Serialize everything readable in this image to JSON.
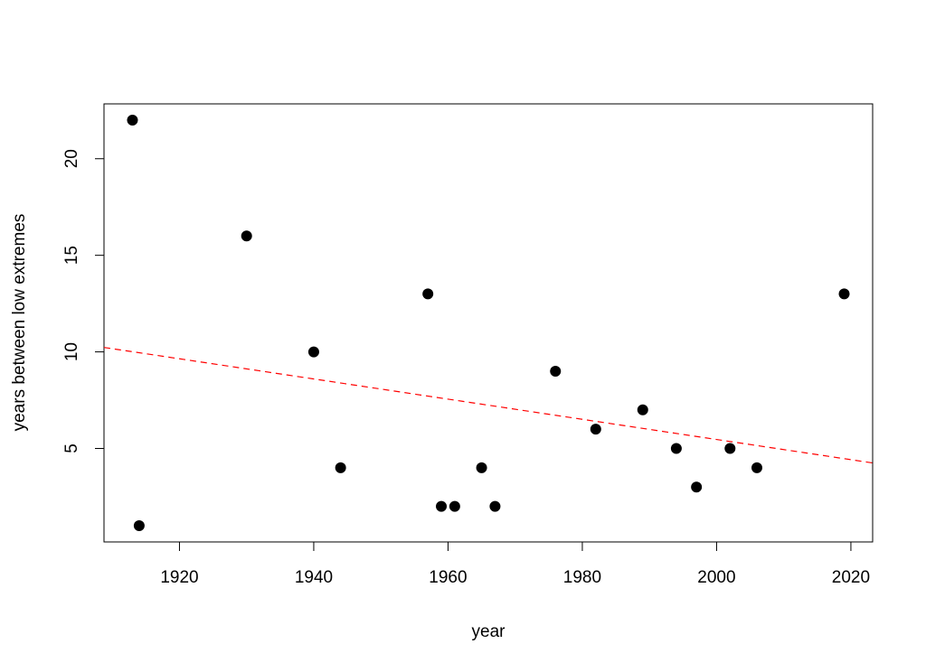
{
  "chart_data": {
    "type": "scatter",
    "xlabel": "year",
    "ylabel": "years between low extremes",
    "series": [
      {
        "color": "#000000",
        "x": [
          1913,
          1914,
          1930,
          1940,
          1944,
          1957,
          1959,
          1961,
          1965,
          1967,
          1976,
          1982,
          1989,
          1994,
          1997,
          2002,
          2006,
          2019
        ],
        "values": [
          22,
          1,
          16,
          10,
          4,
          13,
          2,
          2,
          4,
          2,
          9,
          6,
          7,
          5,
          3,
          5,
          4,
          13
        ]
      }
    ],
    "trendline": {
      "color": "#ff0000",
      "x": [
        1908.76,
        2023.24
      ],
      "values": [
        10.23,
        4.25
      ]
    },
    "xlim": [
      1908.76,
      2023.24
    ],
    "xticks": [
      1920,
      1940,
      1960,
      1980,
      2000,
      2020
    ],
    "ylim": [
      0.16,
      22.84
    ],
    "yticks": [
      5,
      10,
      15,
      20
    ],
    "grid": false
  }
}
